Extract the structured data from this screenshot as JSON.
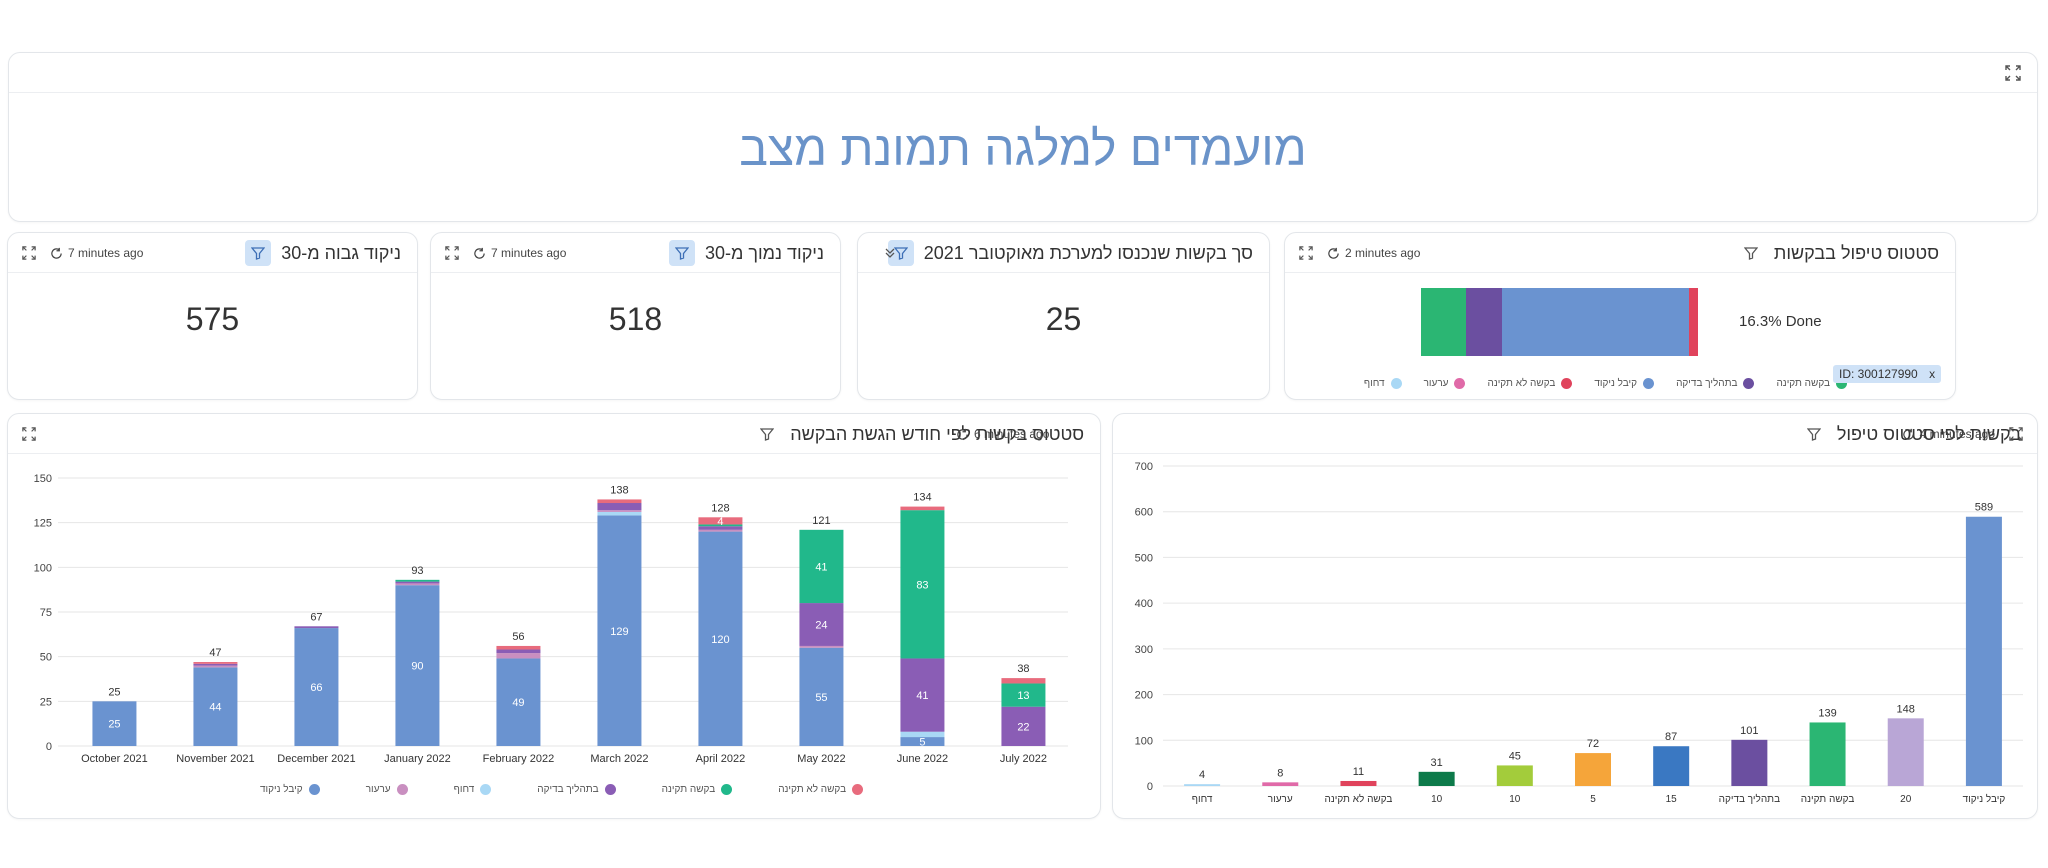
{
  "banner": {
    "title": "מועמדים למלגה תמונת מצב"
  },
  "kpis": [
    {
      "title": "ניקוד גבוה מ-30",
      "refresh": "7 minutes ago",
      "value": "575"
    },
    {
      "title": "ניקוד נמוך מ-30",
      "refresh": "7 minutes ago",
      "value": "518"
    },
    {
      "title": "סך בקשות שנכנסו למערכת מאוקטובר 2021",
      "value": "25"
    }
  ],
  "status_bar": {
    "title": "סטטוס טיפול בבקשות",
    "refresh": "2 minutes ago",
    "done_label": "16.3% Done",
    "id_tag": "ID: 300127990",
    "id_close": "x",
    "segments": [
      {
        "name": "בקשה תקינה",
        "value": 16.3,
        "color": "#2bb673"
      },
      {
        "name": "בתהליך בדיקה",
        "value": 12.8,
        "color": "#6b4fa0"
      },
      {
        "name": "קיבל ניקוד",
        "value": 67.6,
        "color": "#6a93d0"
      },
      {
        "name": "בקשה לא תקינה",
        "value": 3.3,
        "color": "#e0435c"
      }
    ],
    "legend": [
      {
        "name": "בקשה תקינה",
        "color": "#2bb673"
      },
      {
        "name": "בתהליך בדיקה",
        "color": "#6b4fa0"
      },
      {
        "name": "קיבל ניקוד",
        "color": "#6a93d0"
      },
      {
        "name": "בקשה לא תקינה",
        "color": "#e0435c"
      },
      {
        "name": "ערעור",
        "color": "#e06aa8"
      },
      {
        "name": "דחוף",
        "color": "#a9d8f5"
      }
    ]
  },
  "monthly": {
    "title": "סטטוס בקשות לפי חודש הגשת הבקשה",
    "refresh": "6 minutes ago",
    "legend": [
      {
        "name": "בקשה לא תקינה",
        "color": "#e86b7d"
      },
      {
        "name": "בקשה תקינה",
        "color": "#21b88b"
      },
      {
        "name": "בתהליך בדיקה",
        "color": "#8a5db5"
      },
      {
        "name": "דחוף",
        "color": "#a9d8f5"
      },
      {
        "name": "ערעור",
        "color": "#c98fc0"
      },
      {
        "name": "קיבל ניקוד",
        "color": "#6a93d0"
      }
    ]
  },
  "by_status": {
    "title": "בקשות לפי סטטוס טיפול",
    "refresh": "4 minutes ago"
  },
  "chart_data": [
    {
      "type": "bar",
      "stacked": true,
      "title": "סטטוס בקשות לפי חודש הגשת הבקשה",
      "categories": [
        "October 2021",
        "November 2021",
        "December 2021",
        "January 2022",
        "February 2022",
        "March 2022",
        "April 2022",
        "May 2022",
        "June 2022",
        "July 2022"
      ],
      "totals": [
        25,
        47,
        67,
        93,
        56,
        138,
        128,
        121,
        134,
        38
      ],
      "ylim": [
        0,
        150
      ],
      "yticks": [
        0,
        25,
        50,
        75,
        100,
        125,
        150
      ],
      "series": [
        {
          "name": "קיבל ניקוד",
          "color": "#6a93d0",
          "values": [
            25,
            44,
            66,
            90,
            49,
            129,
            120,
            55,
            5,
            0
          ]
        },
        {
          "name": "דחוף",
          "color": "#a9d8f5",
          "values": [
            0,
            0,
            0,
            0,
            0,
            2,
            0,
            0,
            3,
            0
          ]
        },
        {
          "name": "ערעור",
          "color": "#c98fc0",
          "values": [
            0,
            1,
            0,
            1,
            3,
            1,
            1,
            1,
            0,
            0
          ]
        },
        {
          "name": "בתהליך בדיקה",
          "color": "#8a5db5",
          "values": [
            0,
            1,
            1,
            1,
            2,
            4,
            2,
            24,
            41,
            22
          ]
        },
        {
          "name": "בקשה תקינה",
          "color": "#21b88b",
          "values": [
            0,
            0,
            0,
            1,
            0,
            0,
            1,
            41,
            83,
            13
          ]
        },
        {
          "name": "בקשה לא תקינה",
          "color": "#e86b7d",
          "values": [
            0,
            1,
            0,
            0,
            2,
            2,
            4,
            0,
            2,
            3
          ]
        }
      ],
      "labels_inside": [
        [
          25
        ],
        [
          44
        ],
        [
          66
        ],
        [
          90
        ],
        [
          49
        ],
        [
          129
        ],
        [
          120,
          null,
          null,
          null,
          null,
          4
        ],
        [
          55,
          null,
          null,
          24,
          41
        ],
        [
          5,
          null,
          null,
          41,
          83
        ],
        [
          null,
          null,
          null,
          22,
          13
        ]
      ],
      "legend_position": "bottom"
    },
    {
      "type": "bar",
      "title": "בקשות לפי סטטוס טיפול",
      "categories": [
        "דחוף",
        "ערעור",
        "בקשה לא תקינה",
        "10",
        "10",
        "5",
        "15",
        "בתהליך בדיקה",
        "בקשה תקינה",
        "20",
        "קיבל ניקוד"
      ],
      "values": [
        4,
        8,
        11,
        31,
        45,
        72,
        87,
        101,
        139,
        148,
        589
      ],
      "colors": [
        "#a9d8f5",
        "#e06aa8",
        "#e0435c",
        "#0d7a4a",
        "#a3cc3b",
        "#f5a53a",
        "#3a78c2",
        "#6b4fa0",
        "#2bb673",
        "#b9a6d6",
        "#6a93d0"
      ],
      "ylim": [
        0,
        700
      ],
      "yticks": [
        0,
        100,
        200,
        300,
        400,
        500,
        600,
        700
      ]
    }
  ]
}
